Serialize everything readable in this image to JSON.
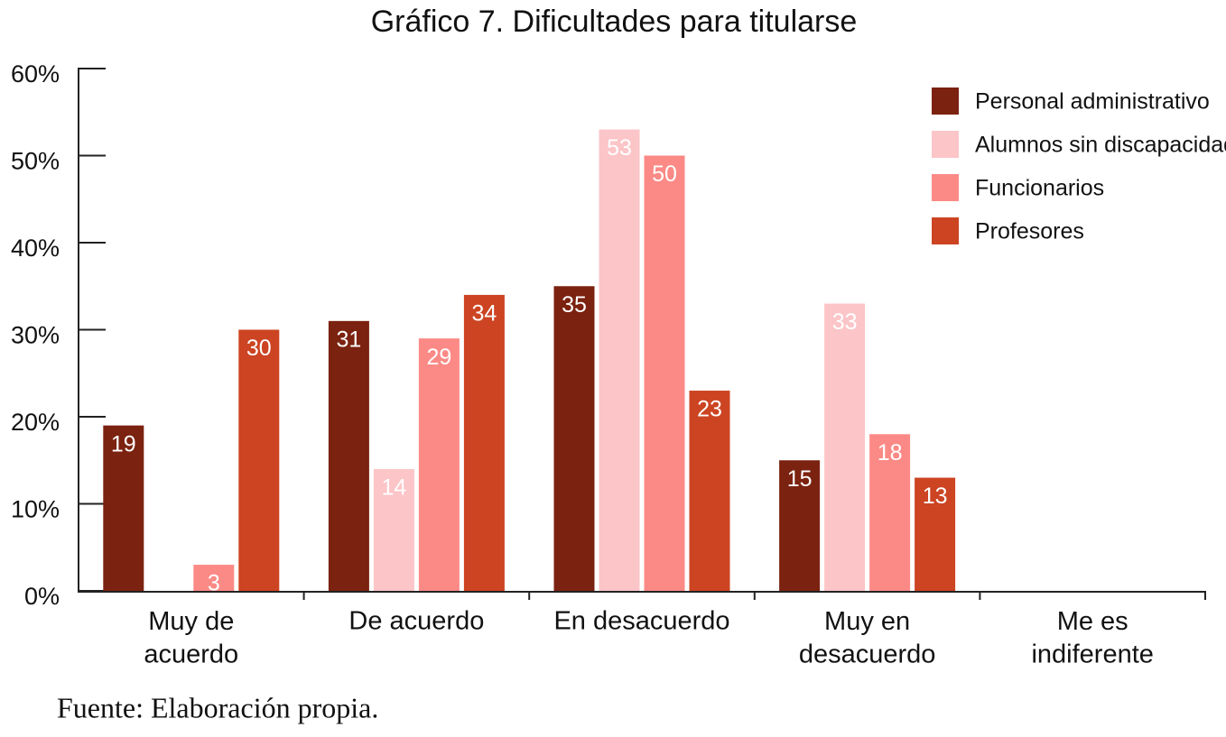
{
  "chart_data": {
    "type": "bar",
    "title": "Gráfico 7. Dificultades para titularse",
    "categories": [
      "Muy de\nacuerdo",
      "De acuerdo",
      "En desacuerdo",
      "Muy en\ndesacuerdo",
      "Me es\nindiferente"
    ],
    "series": [
      {
        "name": "Personal administrativo",
        "color": "#7b2210",
        "values": [
          19,
          31,
          35,
          15,
          null
        ]
      },
      {
        "name": "Alumnos sin discapacidad",
        "color": "#fcc5c8",
        "values": [
          null,
          14,
          53,
          33,
          null
        ]
      },
      {
        "name": "Funcionarios",
        "color": "#fb8a86",
        "values": [
          3,
          29,
          50,
          18,
          null
        ]
      },
      {
        "name": "Profesores",
        "color": "#cc4422",
        "values": [
          30,
          34,
          23,
          13,
          null
        ]
      }
    ],
    "ylim": [
      0,
      60
    ],
    "yticks": [
      {
        "value": 0,
        "label": "0%"
      },
      {
        "value": 10,
        "label": "10%"
      },
      {
        "value": 20,
        "label": "20%"
      },
      {
        "value": 30,
        "label": "30%"
      },
      {
        "value": 40,
        "label": "40%"
      },
      {
        "value": 50,
        "label": "50%"
      },
      {
        "value": 60,
        "label": "60%"
      }
    ],
    "legend": "top-right",
    "source": "Fuente: Elaboración propia."
  }
}
